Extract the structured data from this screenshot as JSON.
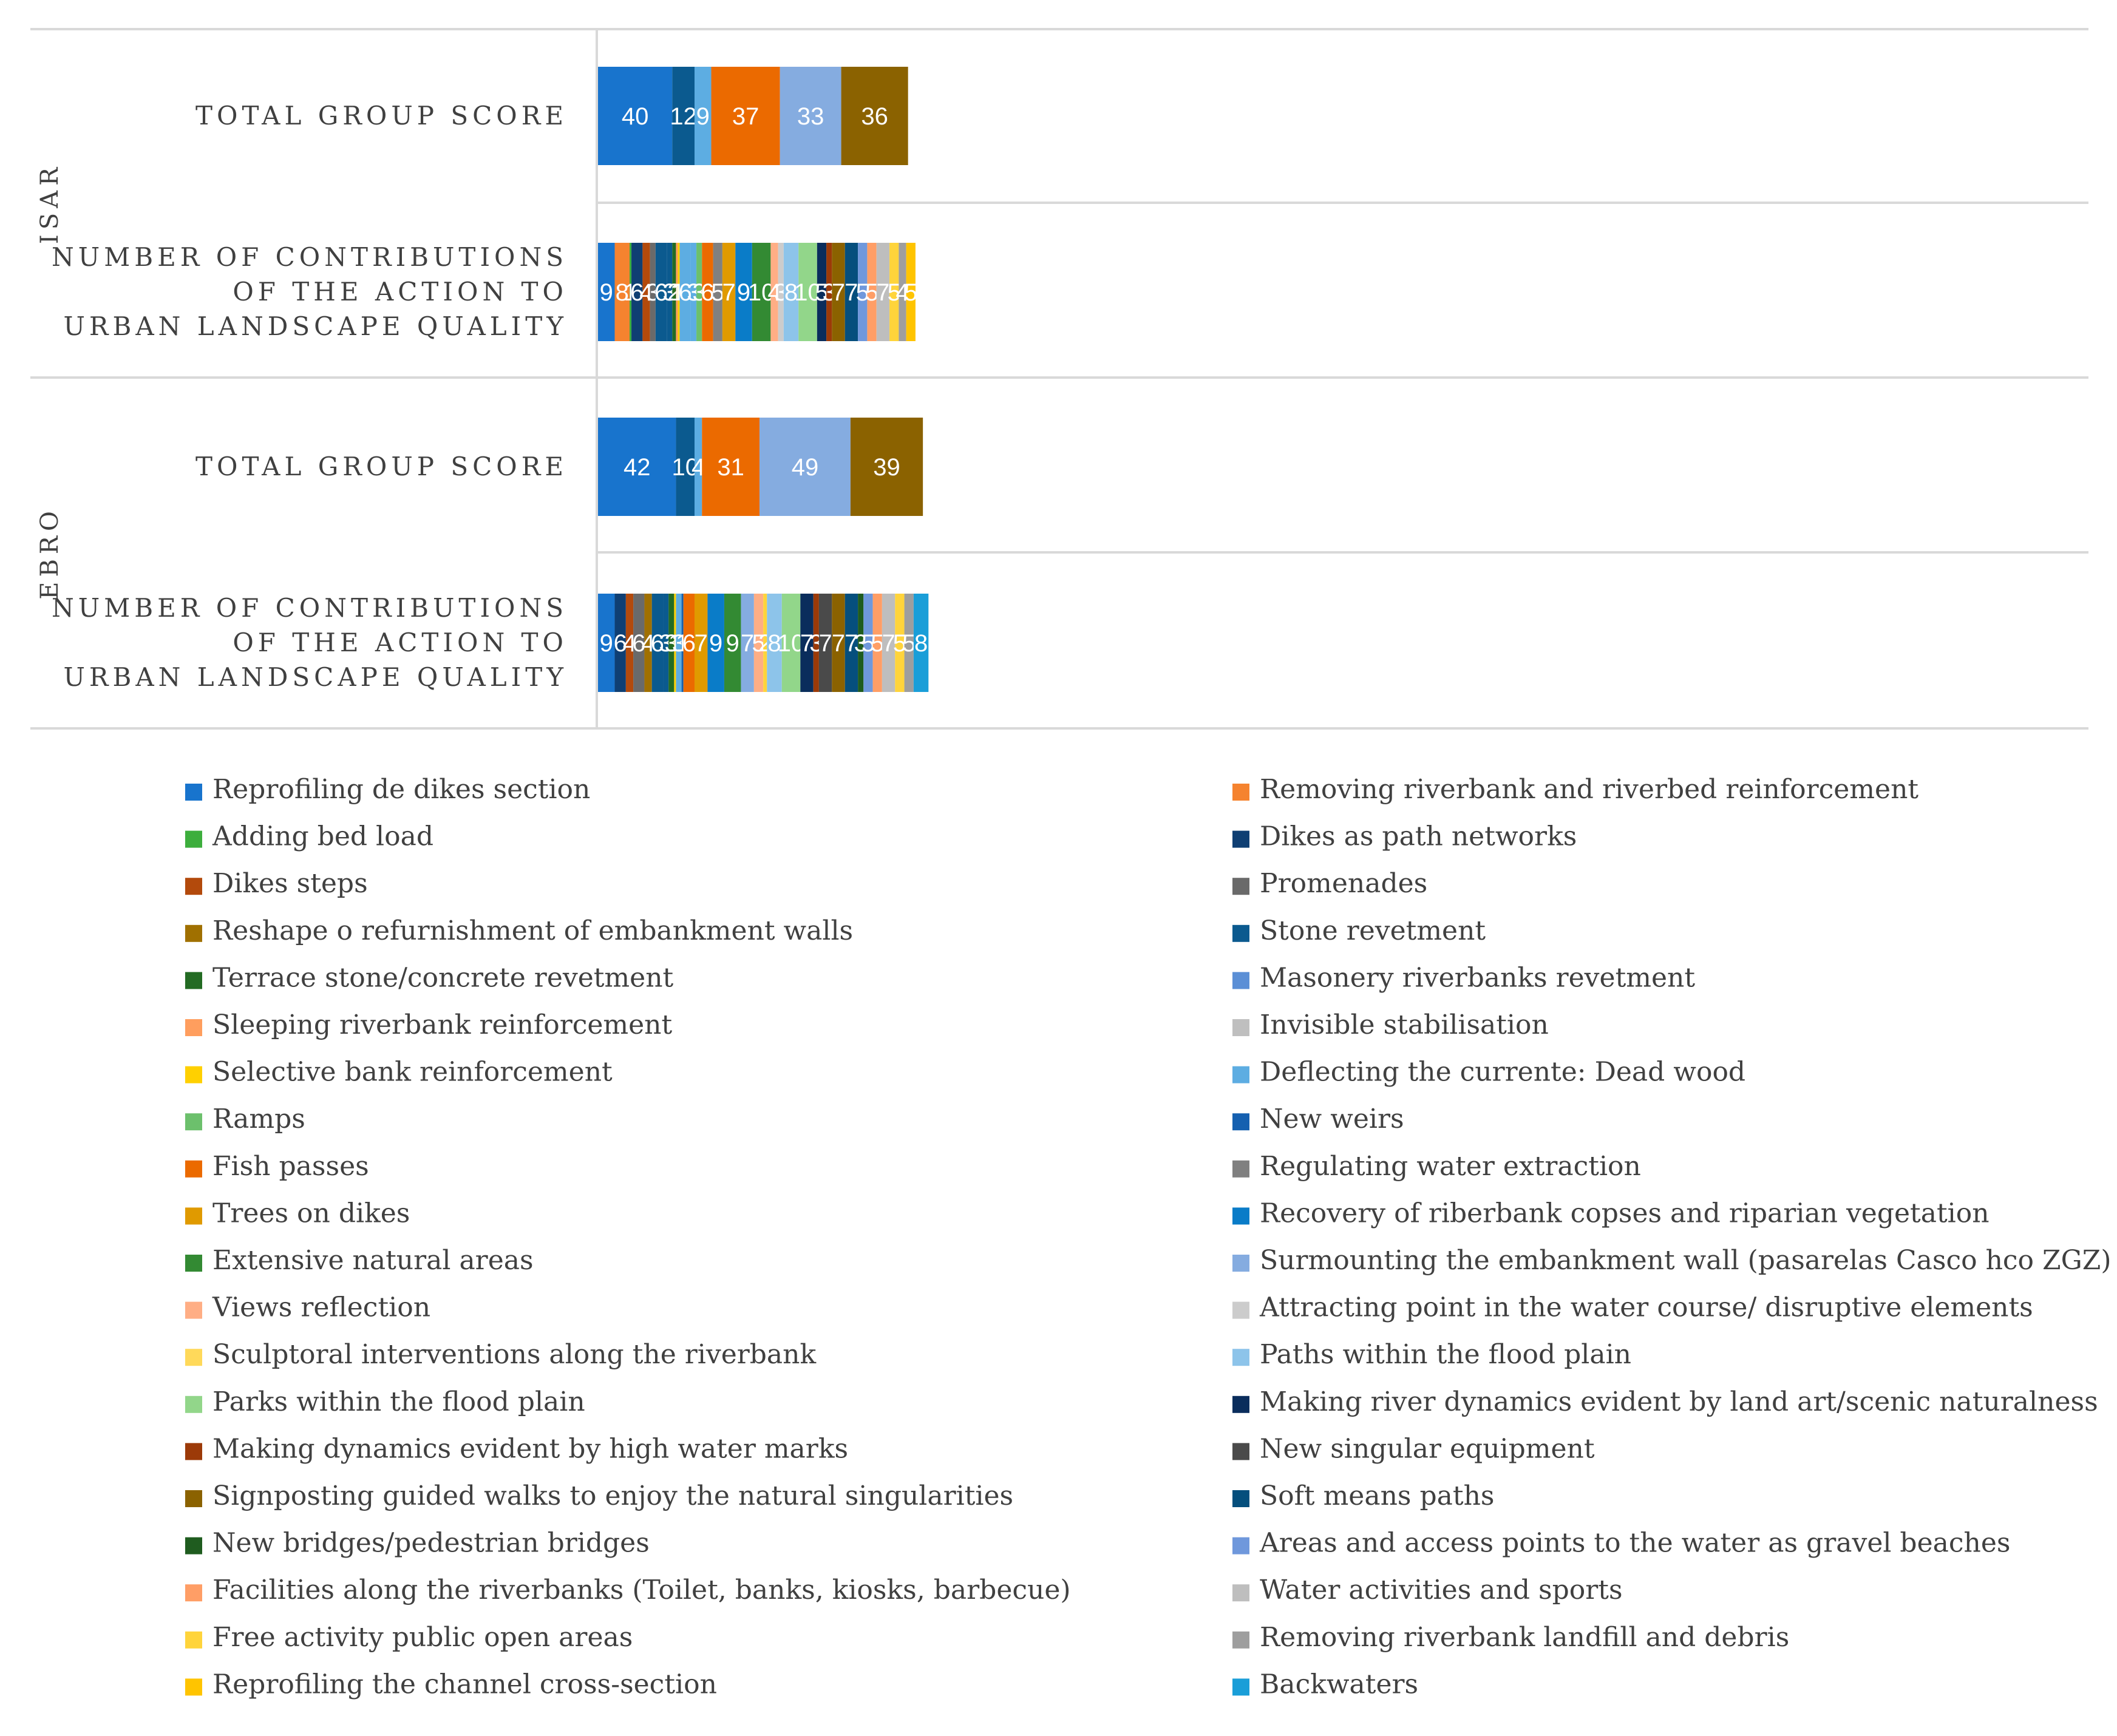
{
  "chart_data": {
    "type": "bar",
    "orientation": "horizontal",
    "stacked": true,
    "grid": false,
    "legend_position": "bottom",
    "groups": [
      {
        "name": "ISAR",
        "rows": [
          {
            "label_lines": [
              "TOTAL GROUP SCORE"
            ],
            "segments": [
              {
                "value": 40,
                "color": "#1874CD"
              },
              {
                "value": 12,
                "color": "#0B5A8F"
              },
              {
                "value": 9,
                "color": "#5DADE2"
              },
              {
                "value": 37,
                "color": "#EB6A00"
              },
              {
                "value": 33,
                "color": "#85ACE0"
              },
              {
                "value": 36,
                "color": "#8B6200"
              }
            ]
          },
          {
            "label_lines": [
              "NUMBER OF CONTRIBUTIONS",
              "OF THE ACTION TO",
              "URBAN LANDSCAPE QUALITY"
            ],
            "segments": [
              {
                "value": 9,
                "color": "#1874CD"
              },
              {
                "value": 8,
                "color": "#F5832F"
              },
              {
                "value": 1,
                "color": "#3DAE3D"
              },
              {
                "value": 6,
                "color": "#0F3F73"
              },
              {
                "value": 4,
                "color": "#B34A0C"
              },
              {
                "value": 3,
                "color": "#6A6A6A"
              },
              {
                "value": 6,
                "color": "#0B5A8F"
              },
              {
                "value": 3,
                "color": "#0B5A8F"
              },
              {
                "value": 2,
                "color": "#236B23"
              },
              {
                "value": 1,
                "color": "#FF9E5E"
              },
              {
                "value": 1,
                "color": "#FFD000"
              },
              {
                "value": 6,
                "color": "#5DADE2"
              },
              {
                "value": 3,
                "color": "#5DADE2"
              },
              {
                "value": 3,
                "color": "#6CC06C"
              },
              {
                "value": 6,
                "color": "#EB6A00"
              },
              {
                "value": 5,
                "color": "#808080"
              },
              {
                "value": 7,
                "color": "#E09A00"
              },
              {
                "value": 9,
                "color": "#0A7CC8"
              },
              {
                "value": 10,
                "color": "#338A33"
              },
              {
                "value": 4,
                "color": "#FFAE85"
              },
              {
                "value": 3,
                "color": "#CCCCCC"
              },
              {
                "value": 8,
                "color": "#8DC4EA"
              },
              {
                "value": 10,
                "color": "#92D68A"
              },
              {
                "value": 5,
                "color": "#0A2D5C"
              },
              {
                "value": 3,
                "color": "#9C3A08"
              },
              {
                "value": 7,
                "color": "#8B6200"
              },
              {
                "value": 7,
                "color": "#054F7D"
              },
              {
                "value": 5,
                "color": "#6F98DC"
              },
              {
                "value": 5,
                "color": "#FF9E66"
              },
              {
                "value": 7,
                "color": "#BEBEBE"
              },
              {
                "value": 5,
                "color": "#FFD43B"
              },
              {
                "value": 4,
                "color": "#9E9E9E"
              },
              {
                "value": 5,
                "color": "#FFC400"
              }
            ]
          }
        ]
      },
      {
        "name": "EBRO",
        "rows": [
          {
            "label_lines": [
              "TOTAL GROUP SCORE"
            ],
            "segments": [
              {
                "value": 42,
                "color": "#1874CD"
              },
              {
                "value": 10,
                "color": "#0B5A8F"
              },
              {
                "value": 4,
                "color": "#5DADE2"
              },
              {
                "value": 31,
                "color": "#EB6A00"
              },
              {
                "value": 49,
                "color": "#85ACE0"
              },
              {
                "value": 39,
                "color": "#8B6200"
              }
            ]
          },
          {
            "label_lines": [
              "NUMBER OF CONTRIBUTIONS",
              "OF THE ACTION TO",
              "URBAN LANDSCAPE QUALITY"
            ],
            "segments": [
              {
                "value": 9,
                "color": "#1874CD"
              },
              {
                "value": 6,
                "color": "#0F3F73"
              },
              {
                "value": 4,
                "color": "#B34A0C"
              },
              {
                "value": 6,
                "color": "#6A6A6A"
              },
              {
                "value": 4,
                "color": "#A07000"
              },
              {
                "value": 6,
                "color": "#0B5A8F"
              },
              {
                "value": 3,
                "color": "#0B5A8F"
              },
              {
                "value": 3,
                "color": "#236B23"
              },
              {
                "value": 1,
                "color": "#FFD000"
              },
              {
                "value": 3,
                "color": "#5DADE2"
              },
              {
                "value": 1,
                "color": "#1560B0"
              },
              {
                "value": 6,
                "color": "#EB6A00"
              },
              {
                "value": 7,
                "color": "#E09A00"
              },
              {
                "value": 9,
                "color": "#0A7CC8"
              },
              {
                "value": 9,
                "color": "#338A33"
              },
              {
                "value": 7,
                "color": "#85ACE0"
              },
              {
                "value": 5,
                "color": "#FFAE85"
              },
              {
                "value": 2,
                "color": "#FFD43B"
              },
              {
                "value": 8,
                "color": "#8DC4EA"
              },
              {
                "value": 10,
                "color": "#92D68A"
              },
              {
                "value": 7,
                "color": "#0A2D5C"
              },
              {
                "value": 3,
                "color": "#9C3A08"
              },
              {
                "value": 7,
                "color": "#4A4A4A"
              },
              {
                "value": 7,
                "color": "#8B6200"
              },
              {
                "value": 7,
                "color": "#054F7D"
              },
              {
                "value": 3,
                "color": "#1F5C1F"
              },
              {
                "value": 5,
                "color": "#6F98DC"
              },
              {
                "value": 5,
                "color": "#FF9E66"
              },
              {
                "value": 7,
                "color": "#BEBEBE"
              },
              {
                "value": 5,
                "color": "#FFD43B"
              },
              {
                "value": 5,
                "color": "#9E9E9E"
              },
              {
                "value": 8,
                "color": "#1A9ED8"
              }
            ]
          }
        ]
      }
    ],
    "legend": [
      {
        "label": "Reprofiling de dikes section",
        "color": "#1874CD"
      },
      {
        "label": "Removing riverbank and riverbed reinforcement",
        "color": "#F5832F"
      },
      {
        "label": "Adding bed load",
        "color": "#3DAE3D"
      },
      {
        "label": "Dikes as path networks",
        "color": "#0F3F73"
      },
      {
        "label": "Dikes steps",
        "color": "#B34A0C"
      },
      {
        "label": "Promenades",
        "color": "#6A6A6A"
      },
      {
        "label": "Reshape o refurnishment of embankment walls",
        "color": "#A07000"
      },
      {
        "label": "Stone revetment",
        "color": "#0B5A8F"
      },
      {
        "label": "Terrace stone/concrete revetment",
        "color": "#236B23"
      },
      {
        "label": "Masonery riverbanks revetment",
        "color": "#5B8FD6"
      },
      {
        "label": "Sleeping riverbank reinforcement",
        "color": "#FF9E5E"
      },
      {
        "label": "Invisible stabilisation",
        "color": "#BFBFBF"
      },
      {
        "label": "Selective bank reinforcement",
        "color": "#FFD000"
      },
      {
        "label": "Deflecting the currente: Dead wood",
        "color": "#5DADE2"
      },
      {
        "label": "Ramps",
        "color": "#6CC06C"
      },
      {
        "label": "New weirs",
        "color": "#1560B0"
      },
      {
        "label": "Fish passes",
        "color": "#EB6A00"
      },
      {
        "label": "Regulating water extraction",
        "color": "#808080"
      },
      {
        "label": "Trees on dikes",
        "color": "#E09A00"
      },
      {
        "label": "Recovery of riberbank copses and riparian vegetation",
        "color": "#0A7CC8"
      },
      {
        "label": "Extensive natural areas",
        "color": "#338A33"
      },
      {
        "label": "Surmounting the embankment wall (pasarelas Casco hco ZGZ)",
        "color": "#85ACE0"
      },
      {
        "label": "Views reflection",
        "color": "#FFAE85"
      },
      {
        "label": "Attracting point in the water course/ disruptive elements",
        "color": "#CCCCCC"
      },
      {
        "label": "Sculptoral interventions along the riverbank",
        "color": "#FFD95A"
      },
      {
        "label": "Paths within the flood plain",
        "color": "#8DC4EA"
      },
      {
        "label": "Parks within the flood plain",
        "color": "#92D68A"
      },
      {
        "label": "Making river dynamics evident by land art/scenic naturalness",
        "color": "#0A2D5C"
      },
      {
        "label": "Making dynamics evident by high water marks",
        "color": "#9C3A08"
      },
      {
        "label": "New singular equipment",
        "color": "#4A4A4A"
      },
      {
        "label": " Signposting guided walks to enjoy the natural singularities",
        "color": "#8B6200"
      },
      {
        "label": "Soft means paths",
        "color": "#054F7D"
      },
      {
        "label": "New bridges/pedestrian bridges",
        "color": "#1F5C1F"
      },
      {
        "label": "Areas and access points to the water as gravel beaches",
        "color": "#6F98DC"
      },
      {
        "label": "Facilities along the riverbanks (Toilet, banks, kiosks, barbecue)",
        "color": "#FF9E66"
      },
      {
        "label": "Water activities and sports",
        "color": "#BEBEBE"
      },
      {
        "label": "Free activity public open areas",
        "color": "#FFD43B"
      },
      {
        "label": "Removing riverbank landfill and debris",
        "color": "#9E9E9E"
      },
      {
        "label": "Reprofiling the channel cross-section",
        "color": "#FFC400"
      },
      {
        "label": "Backwaters",
        "color": "#1A9ED8"
      }
    ]
  }
}
